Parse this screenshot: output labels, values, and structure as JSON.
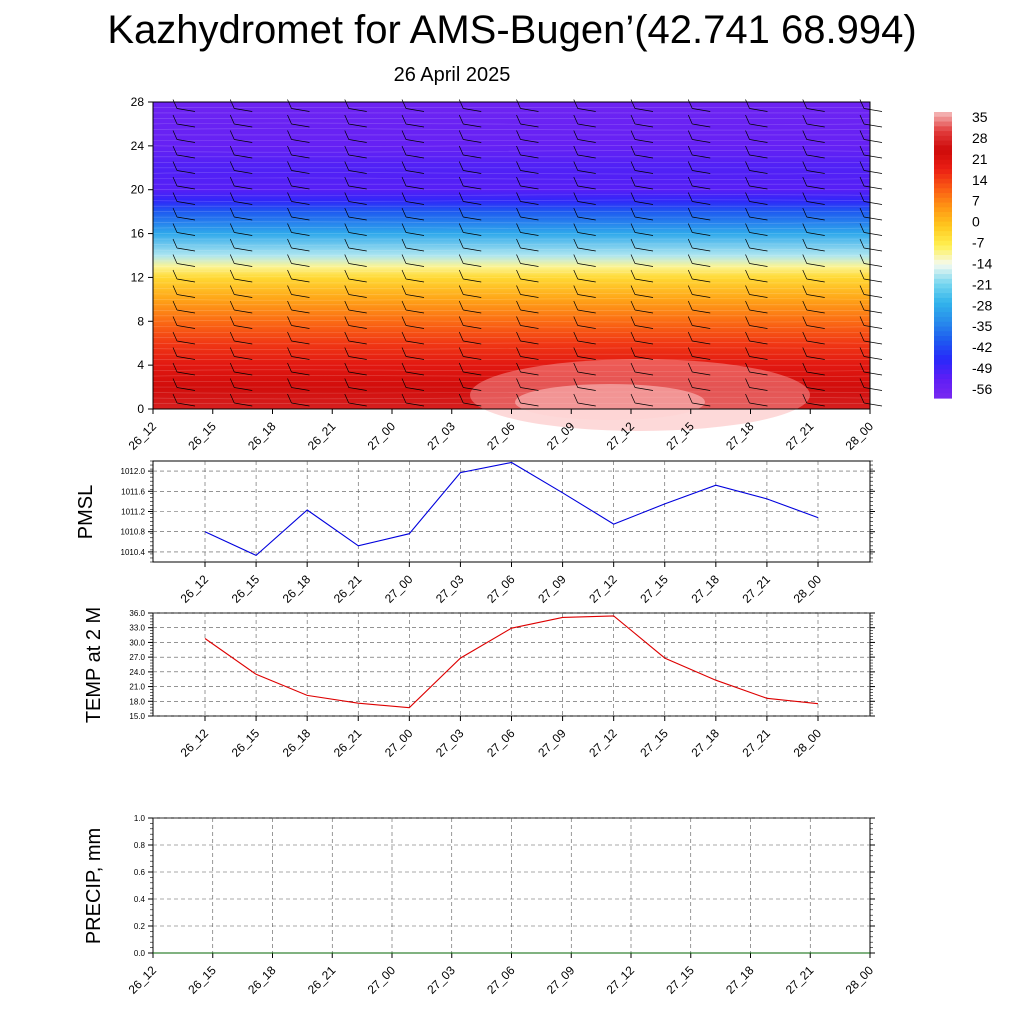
{
  "title": "Kazhydromet for AMS-Bugen’(42.741 68.994)",
  "date": "26 April 2025",
  "time_labels": [
    "26_12",
    "26_15",
    "26_18",
    "26_21",
    "27_00",
    "27_03",
    "27_06",
    "27_09",
    "27_12",
    "27_15",
    "27_18",
    "27_21",
    "28_00"
  ],
  "chart_data": [
    {
      "type": "heatmap",
      "description_text": "",
      "y_ticks": [
        0,
        4,
        8,
        12,
        16,
        20,
        24,
        28
      ],
      "ylim": [
        0,
        28
      ],
      "colorbar_labels": [
        "35",
        "28",
        "21",
        "14",
        "7",
        "0",
        "-7",
        "-14",
        "-21",
        "-28",
        "-35",
        "-42",
        "-49",
        "-56"
      ],
      "colorbar_range": [
        -63,
        42
      ],
      "levels": [
        {
          "y": 0,
          "value": 31
        },
        {
          "y": 2,
          "value": 27
        },
        {
          "y": 4,
          "value": 23
        },
        {
          "y": 6,
          "value": 18
        },
        {
          "y": 8,
          "value": 12
        },
        {
          "y": 10,
          "value": 5
        },
        {
          "y": 12,
          "value": -3
        },
        {
          "y": 13,
          "value": -10
        },
        {
          "y": 14,
          "value": -18
        },
        {
          "y": 16,
          "value": -30
        },
        {
          "y": 18,
          "value": -42
        },
        {
          "y": 19,
          "value": -50
        },
        {
          "y": 20,
          "value": -55
        },
        {
          "y": 22,
          "value": -54
        },
        {
          "y": 24,
          "value": -58
        },
        {
          "y": 28,
          "value": -60
        }
      ],
      "grid": false,
      "legend": "right"
    },
    {
      "type": "line",
      "ylabel": "PMSL",
      "ylim": [
        1010.2,
        1012.2
      ],
      "y_ticks": [
        "1010.4",
        "1010.8",
        "1011.2",
        "1011.6",
        "1012.0"
      ],
      "color": "#0000dd",
      "series": [
        {
          "values": [
            1010.8,
            1010.33,
            1011.23,
            1010.52,
            1010.76,
            1011.97,
            1012.17,
            1011.57,
            1010.95,
            1011.35,
            1011.72,
            1011.45,
            1011.08
          ]
        }
      ],
      "grid": true
    },
    {
      "type": "line",
      "ylabel": "TEMP at 2 M",
      "ylim": [
        15.0,
        36.0
      ],
      "y_ticks": [
        "15.0",
        "18.0",
        "21.0",
        "24.0",
        "27.0",
        "30.0",
        "33.0",
        "36.0"
      ],
      "color": "#dd0000",
      "series": [
        {
          "values": [
            30.8,
            23.5,
            19.2,
            17.6,
            16.7,
            26.8,
            32.9,
            35.1,
            35.4,
            26.8,
            22.3,
            18.6,
            17.5
          ]
        }
      ],
      "grid": true
    },
    {
      "type": "line",
      "ylabel": "PRECIP, mm",
      "ylim": [
        0.0,
        1.0
      ],
      "y_ticks": [
        "0.0",
        "0.2",
        "0.4",
        "0.6",
        "0.8",
        "1.0"
      ],
      "color": "#006600",
      "series": [
        {
          "values": [
            0,
            0,
            0,
            0,
            0,
            0,
            0,
            0,
            0,
            0,
            0,
            0,
            0
          ]
        }
      ],
      "grid": true
    }
  ]
}
